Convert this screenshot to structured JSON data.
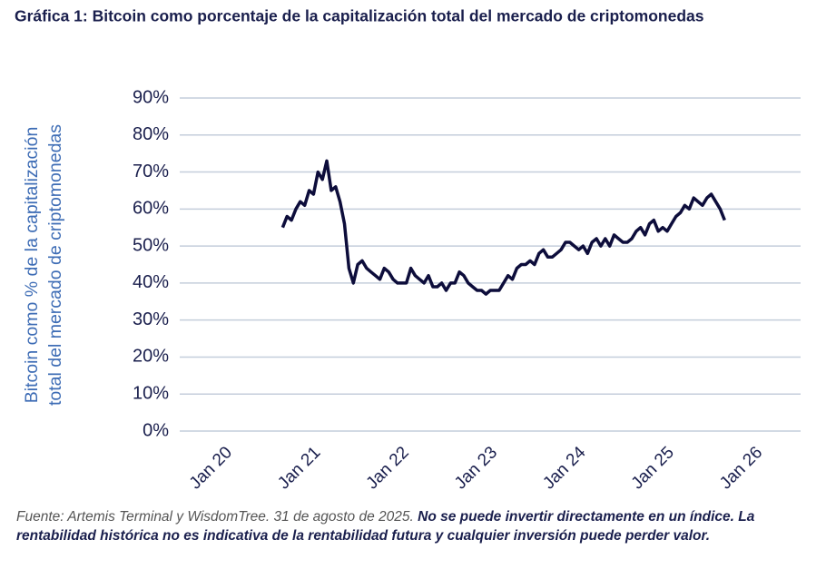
{
  "chart_data": {
    "type": "line",
    "title": "Gráfica 1: Bitcoin como porcentaje de la capitalización total del mercado de criptomonedas",
    "y_label": [
      "Bitcoin como % de la capitalización",
      "total del mercado de criptomonedas"
    ],
    "source": {
      "text": "Fuente: Artemis Terminal y WisdomTree. 31 de agosto de 2025.",
      "bold": "No se puede invertir directamente en un índice. La rentabilidad histórica no es indicativa de la rentabilidad futura y cualquier inversión puede perder valor."
    },
    "x": [
      2020.6,
      2020.65,
      2020.7,
      2020.75,
      2020.8,
      2020.85,
      2020.9,
      2020.95,
      2021.0,
      2021.05,
      2021.1,
      2021.15,
      2021.2,
      2021.25,
      2021.3,
      2021.35,
      2021.4,
      2021.45,
      2021.5,
      2021.55,
      2021.6,
      2021.65,
      2021.7,
      2021.75,
      2021.8,
      2021.85,
      2021.9,
      2021.95,
      2022.0,
      2022.05,
      2022.1,
      2022.15,
      2022.2,
      2022.25,
      2022.3,
      2022.35,
      2022.4,
      2022.45,
      2022.5,
      2022.55,
      2022.6,
      2022.65,
      2022.7,
      2022.75,
      2022.8,
      2022.85,
      2022.9,
      2022.95,
      2023.0,
      2023.05,
      2023.1,
      2023.15,
      2023.2,
      2023.25,
      2023.3,
      2023.35,
      2023.4,
      2023.45,
      2023.5,
      2023.55,
      2023.6,
      2023.65,
      2023.7,
      2023.75,
      2023.8,
      2023.85,
      2023.9,
      2023.95,
      2024.0,
      2024.05,
      2024.1,
      2024.15,
      2024.2,
      2024.25,
      2024.3,
      2024.35,
      2024.4,
      2024.45,
      2024.5,
      2024.55,
      2024.6,
      2024.65,
      2024.7,
      2024.75,
      2024.8,
      2024.85,
      2024.9,
      2024.95,
      2025.0,
      2025.05,
      2025.1,
      2025.15,
      2025.2,
      2025.25,
      2025.3,
      2025.35,
      2025.4,
      2025.45,
      2025.5,
      2025.55,
      2025.6
    ],
    "series": [
      {
        "name": "Bitcoin",
        "color": "#0d0d3b",
        "values": [
          55,
          58,
          57,
          60,
          62,
          61,
          65,
          64,
          70,
          68,
          73,
          65,
          66,
          62,
          56,
          44,
          40,
          45,
          46,
          44,
          43,
          42,
          41,
          44,
          43,
          41,
          40,
          40,
          40,
          44,
          42,
          41,
          40,
          42,
          39,
          39,
          40,
          38,
          40,
          40,
          43,
          42,
          40,
          39,
          38,
          38,
          37,
          38,
          38,
          38,
          40,
          42,
          41,
          44,
          45,
          45,
          46,
          45,
          48,
          49,
          47,
          47,
          48,
          49,
          51,
          51,
          50,
          49,
          50,
          48,
          51,
          52,
          50,
          52,
          50,
          53,
          52,
          51,
          51,
          52,
          54,
          55,
          53,
          56,
          57,
          54,
          55,
          54,
          56,
          58,
          59,
          61,
          60,
          63,
          62,
          61,
          63,
          64,
          62,
          60,
          57
        ]
      }
    ],
    "xlim": [
      2019.436,
      2026.46
    ],
    "xticks": [
      {
        "value": 2020,
        "label": "Jan 20"
      },
      {
        "value": 2021,
        "label": "Jan 21"
      },
      {
        "value": 2022,
        "label": "Jan 22"
      },
      {
        "value": 2023,
        "label": "Jan 23"
      },
      {
        "value": 2024,
        "label": "Jan 24"
      },
      {
        "value": 2025,
        "label": "Jan 25"
      },
      {
        "value": 2026,
        "label": "Jan 26"
      }
    ],
    "ylim": [
      0,
      90
    ],
    "yticks": [
      {
        "value": 0,
        "label": "0%"
      },
      {
        "value": 10,
        "label": "10%"
      },
      {
        "value": 20,
        "label": "20%"
      },
      {
        "value": 30,
        "label": "30%"
      },
      {
        "value": 40,
        "label": "40%"
      },
      {
        "value": 50,
        "label": "50%"
      },
      {
        "value": 60,
        "label": "60%"
      },
      {
        "value": 70,
        "label": "70%"
      },
      {
        "value": 80,
        "label": "80%"
      },
      {
        "value": 90,
        "label": "90%"
      }
    ],
    "grid": true
  }
}
